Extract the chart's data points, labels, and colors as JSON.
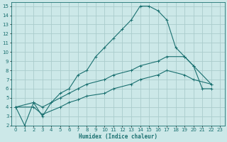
{
  "xlabel": "Humidex (Indice chaleur)",
  "bg_color": "#cce8e8",
  "grid_color": "#aacccc",
  "line_color": "#1a7070",
  "xlim": [
    -0.5,
    23.5
  ],
  "ylim": [
    2,
    15.4
  ],
  "xticks": [
    0,
    1,
    2,
    3,
    4,
    5,
    6,
    7,
    8,
    9,
    10,
    11,
    12,
    13,
    14,
    15,
    16,
    17,
    18,
    19,
    20,
    21,
    22,
    23
  ],
  "yticks": [
    2,
    3,
    4,
    5,
    6,
    7,
    8,
    9,
    10,
    11,
    12,
    13,
    14,
    15
  ],
  "line1_x": [
    0,
    1,
    2,
    3,
    4,
    5,
    6,
    7,
    8,
    9,
    10,
    11,
    12,
    13,
    14,
    15,
    16,
    17,
    18,
    19,
    20,
    21,
    22
  ],
  "line1_y": [
    4,
    2,
    4.5,
    3,
    4.5,
    5.5,
    6.0,
    7.5,
    8.0,
    9.5,
    10.5,
    11.5,
    12.5,
    13.5,
    15.0,
    15.0,
    14.5,
    13.5,
    10.5,
    9.5,
    8.5,
    6.0,
    6.0
  ],
  "line2_x": [
    0,
    2,
    3,
    5,
    6,
    7,
    8,
    10,
    11,
    13,
    14,
    16,
    17,
    19,
    20,
    22
  ],
  "line2_y": [
    4.0,
    4.5,
    4.0,
    5.0,
    5.5,
    6.0,
    6.5,
    7.0,
    7.5,
    8.0,
    8.5,
    9.0,
    9.5,
    9.5,
    8.5,
    6.5
  ],
  "line3_x": [
    0,
    2,
    3,
    5,
    6,
    7,
    8,
    10,
    11,
    13,
    14,
    16,
    17,
    19,
    20,
    22
  ],
  "line3_y": [
    4.0,
    4.0,
    3.2,
    4.0,
    4.5,
    4.8,
    5.2,
    5.5,
    6.0,
    6.5,
    7.0,
    7.5,
    8.0,
    7.5,
    7.0,
    6.5
  ]
}
